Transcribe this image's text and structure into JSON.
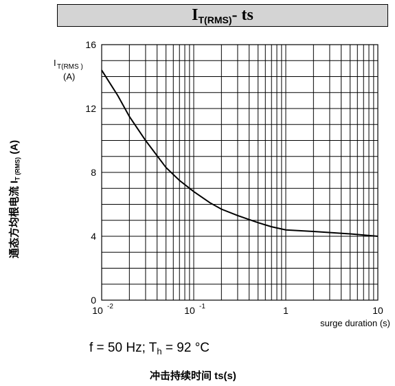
{
  "title": {
    "main": "I",
    "sub": "T(RMS)",
    "rest": "- ts"
  },
  "side_ylabel": {
    "main": "通态方均根电流 I",
    "sub": "T (RMS)",
    "unit": " (A)"
  },
  "condition": {
    "part1": "f = 50 Hz; T",
    "sub": "h",
    "part2": " = 92 °C"
  },
  "xtitle_cn": "冲击持续时间 ts(s)",
  "chart_data": {
    "type": "line",
    "title": "IT(RMS)- ts",
    "xlabel": "surge duration (s)",
    "ylabel": {
      "line1": "I",
      "sub": "T(RMS )",
      "line2": "(A)"
    },
    "x_scale": "log",
    "xlim": [
      0.01,
      10
    ],
    "ylim": [
      0,
      16
    ],
    "x_ticks": [
      {
        "value": 0.01,
        "base": "10",
        "exp": "-2"
      },
      {
        "value": 0.1,
        "base": "10",
        "exp": "-1"
      },
      {
        "value": 1,
        "base": "1",
        "exp": ""
      },
      {
        "value": 10,
        "base": "10",
        "exp": ""
      }
    ],
    "y_ticks": [
      0,
      4,
      8,
      12,
      16
    ],
    "grid": true,
    "series": [
      {
        "color": "#000000",
        "x": [
          0.01,
          0.015,
          0.02,
          0.03,
          0.05,
          0.07,
          0.1,
          0.15,
          0.2,
          0.3,
          0.5,
          0.7,
          1,
          2,
          5,
          10
        ],
        "y": [
          14.4,
          12.8,
          11.5,
          10.0,
          8.3,
          7.5,
          6.8,
          6.1,
          5.7,
          5.3,
          4.85,
          4.6,
          4.4,
          4.3,
          4.15,
          4.0
        ]
      }
    ]
  }
}
